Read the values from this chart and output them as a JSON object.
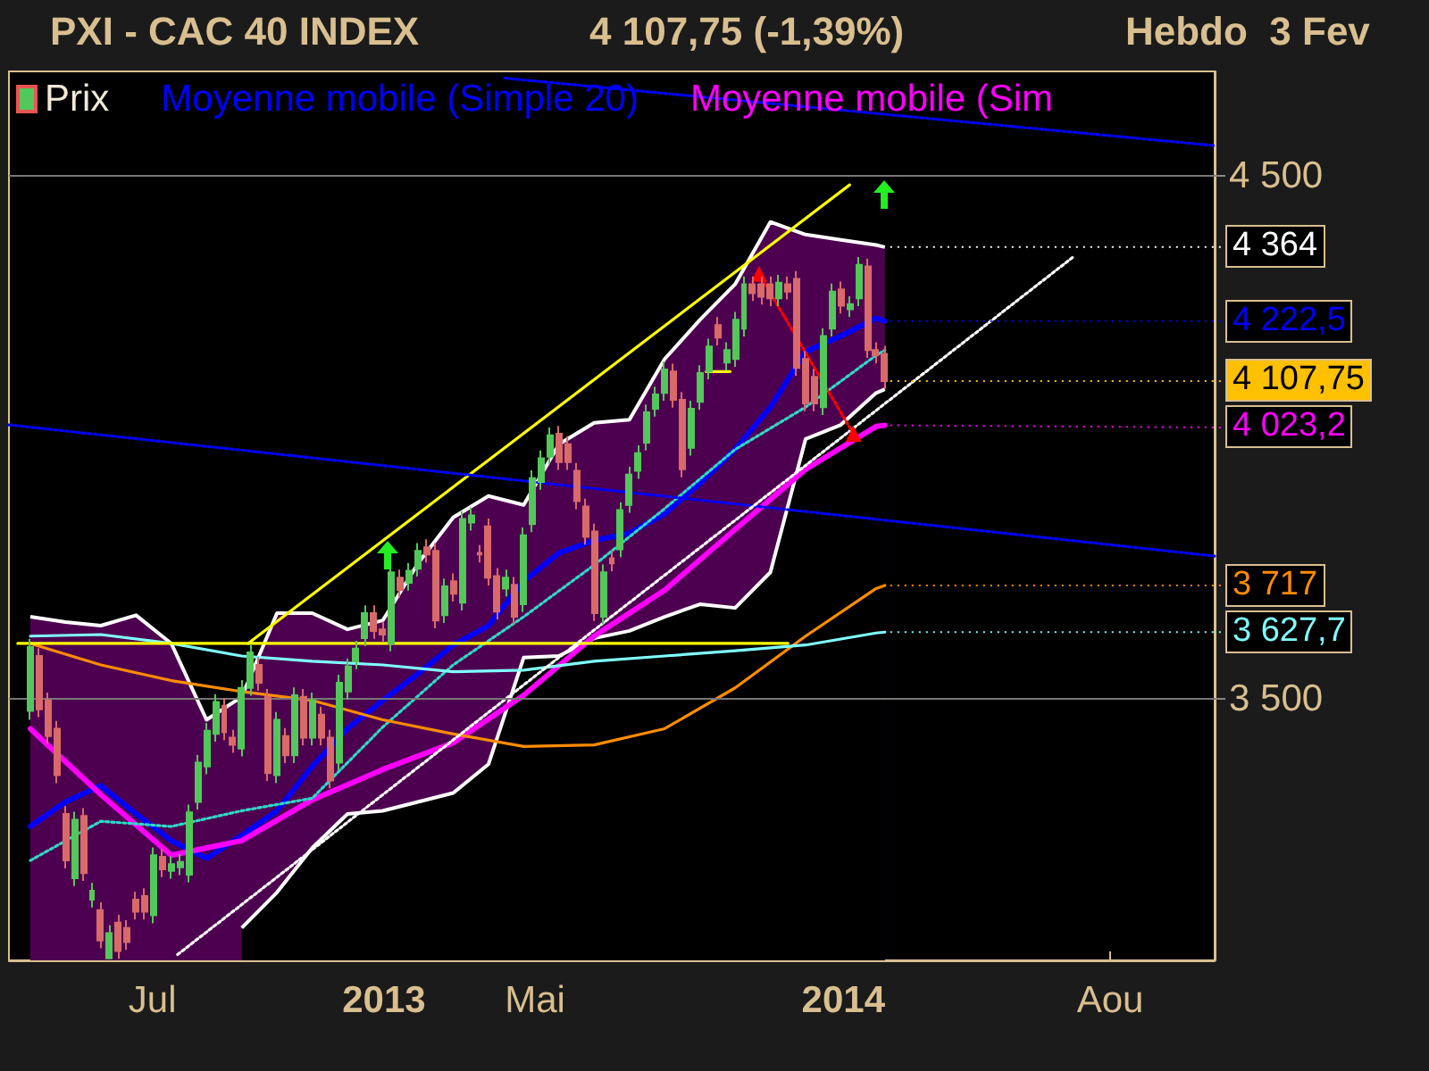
{
  "chart_data": {
    "type": "candlestick",
    "title": "PXI - CAC 40 INDEX",
    "subtitle": "4 107,75 (-1,39%)",
    "annotations": [
      "Hebdo  3 Fev"
    ],
    "xlim": [
      "2012-03-09",
      "2014-10-23"
    ],
    "xticks": [
      {
        "value": "2012-07-01",
        "label": "Jul"
      },
      {
        "value": "2013-01-01",
        "label": "2013"
      },
      {
        "value": "2013-05-01",
        "label": "Mai"
      },
      {
        "value": "2014-01-01",
        "label": "2014"
      },
      {
        "value": "2014-08-01",
        "label": "Aou"
      }
    ],
    "ylim": [
      3000,
      4700
    ],
    "yticks": [
      {
        "value": 4500,
        "label": "4 500"
      },
      {
        "value": 3500,
        "label": "3 500"
      }
    ],
    "grid": "y",
    "legend": "top left",
    "series": [
      {
        "name": "Prix",
        "value_labels": [
          null,
          null,
          null,
          null,
          null,
          null,
          null,
          null,
          null,
          null,
          null,
          null,
          null,
          null,
          null,
          null,
          null,
          null,
          null,
          null,
          null,
          null,
          null,
          null,
          null,
          null,
          null,
          null,
          null,
          null,
          null,
          null,
          null,
          null,
          null,
          null,
          null,
          null,
          null,
          null,
          null,
          null,
          null,
          null,
          null,
          null,
          null,
          null,
          null,
          null,
          null,
          null,
          null,
          null,
          null,
          null,
          null,
          null,
          null,
          null,
          null,
          null,
          null,
          null,
          null,
          null,
          null,
          null,
          null,
          null,
          null,
          null,
          null,
          null,
          null,
          null,
          null,
          null,
          null,
          null,
          null,
          null,
          null,
          null,
          null,
          null,
          null,
          null,
          null,
          null,
          null,
          null,
          null,
          null,
          null,
          null,
          null,
          "4 107,75"
        ],
        "color": "#f0e8d8",
        "x": [
          "2012-03-26",
          "2012-04-02",
          "2012-04-09",
          "2012-04-16",
          "2012-04-23",
          "2012-04-30",
          "2012-05-07",
          "2012-05-14",
          "2012-05-21",
          "2012-05-28",
          "2012-06-04",
          "2012-06-11",
          "2012-06-18",
          "2012-06-25",
          "2012-07-02",
          "2012-07-09",
          "2012-07-16",
          "2012-07-23",
          "2012-07-30",
          "2012-08-06",
          "2012-08-13",
          "2012-08-20",
          "2012-08-27",
          "2012-09-03",
          "2012-09-10",
          "2012-09-17",
          "2012-09-24",
          "2012-10-01",
          "2012-10-08",
          "2012-10-15",
          "2012-10-22",
          "2012-10-29",
          "2012-11-05",
          "2012-11-12",
          "2012-11-19",
          "2012-11-26",
          "2012-12-03",
          "2012-12-10",
          "2012-12-17",
          "2012-12-24",
          "2012-12-31",
          "2013-01-07",
          "2013-01-14",
          "2013-01-21",
          "2013-01-28",
          "2013-02-04",
          "2013-02-11",
          "2013-02-18",
          "2013-02-25",
          "2013-03-04",
          "2013-03-11",
          "2013-03-18",
          "2013-03-25",
          "2013-04-01",
          "2013-04-08",
          "2013-04-15",
          "2013-04-22",
          "2013-04-29",
          "2013-05-06",
          "2013-05-13",
          "2013-05-20",
          "2013-05-27",
          "2013-06-03",
          "2013-06-10",
          "2013-06-17",
          "2013-06-24",
          "2013-07-01",
          "2013-07-08",
          "2013-07-15",
          "2013-07-22",
          "2013-07-29",
          "2013-08-05",
          "2013-08-12",
          "2013-08-19",
          "2013-08-26",
          "2013-09-02",
          "2013-09-09",
          "2013-09-16",
          "2013-09-23",
          "2013-09-30",
          "2013-10-07",
          "2013-10-14",
          "2013-10-21",
          "2013-10-28",
          "2013-11-04",
          "2013-11-11",
          "2013-11-18",
          "2013-11-25",
          "2013-12-02",
          "2013-12-09",
          "2013-12-16",
          "2013-12-23",
          "2013-12-30",
          "2014-01-06",
          "2014-01-13",
          "2014-01-20",
          "2014-01-27",
          "2014-02-03"
        ],
        "ohlc": [
          [
            3477,
            3615,
            3460,
            3599
          ],
          [
            3582,
            3597,
            3465,
            3480
          ],
          [
            3497,
            3512,
            3414,
            3429
          ],
          [
            3443,
            3458,
            3339,
            3354
          ],
          [
            3280,
            3295,
            3176,
            3191
          ],
          [
            3157,
            3284,
            3142,
            3269
          ],
          [
            3276,
            3291,
            3152,
            3167
          ],
          [
            3116,
            3148,
            3101,
            3133
          ],
          [
            3096,
            3111,
            3023,
            3038
          ],
          [
            3004,
            3067,
            3002,
            3052
          ],
          [
            3072,
            3087,
            3003,
            3018
          ],
          [
            3062,
            3077,
            3020,
            3035
          ],
          [
            3116,
            3131,
            3078,
            3093
          ],
          [
            3123,
            3138,
            3078,
            3093
          ],
          [
            3086,
            3216,
            3071,
            3201
          ],
          [
            3198,
            3213,
            3159,
            3174
          ],
          [
            3171,
            3199,
            3156,
            3184
          ],
          [
            3178,
            3203,
            3163,
            3188
          ],
          [
            3164,
            3298,
            3149,
            3283
          ],
          [
            3303,
            3393,
            3288,
            3378
          ],
          [
            3371,
            3454,
            3356,
            3439
          ],
          [
            3433,
            3509,
            3418,
            3494
          ],
          [
            3487,
            3502,
            3421,
            3436
          ],
          [
            3426,
            3441,
            3397,
            3412
          ],
          [
            3405,
            3536,
            3390,
            3521
          ],
          [
            3521,
            3604,
            3506,
            3589
          ],
          [
            3565,
            3580,
            3516,
            3531
          ],
          [
            3504,
            3519,
            3343,
            3358
          ],
          [
            3354,
            3475,
            3339,
            3460
          ],
          [
            3429,
            3444,
            3377,
            3392
          ],
          [
            3392,
            3522,
            3377,
            3507
          ],
          [
            3504,
            3519,
            3411,
            3426
          ],
          [
            3426,
            3512,
            3411,
            3497
          ],
          [
            3470,
            3485,
            3411,
            3426
          ],
          [
            3426,
            3441,
            3329,
            3344
          ],
          [
            3378,
            3546,
            3363,
            3531
          ],
          [
            3514,
            3577,
            3499,
            3562
          ],
          [
            3572,
            3611,
            3557,
            3596
          ],
          [
            3616,
            3679,
            3601,
            3664
          ],
          [
            3664,
            3679,
            3615,
            3630
          ],
          [
            3633,
            3648,
            3608,
            3623
          ],
          [
            3606,
            3757,
            3591,
            3742
          ],
          [
            3732,
            3747,
            3693,
            3708
          ],
          [
            3722,
            3760,
            3707,
            3745
          ],
          [
            3749,
            3798,
            3734,
            3783
          ],
          [
            3790,
            3805,
            3761,
            3776
          ],
          [
            3783,
            3798,
            3635,
            3650
          ],
          [
            3660,
            3730,
            3645,
            3715
          ],
          [
            3725,
            3740,
            3686,
            3701
          ],
          [
            3684,
            3859,
            3669,
            3844
          ],
          [
            3837,
            3866,
            3822,
            3851
          ],
          [
            3779,
            3794,
            3761,
            3776
          ],
          [
            3830,
            3845,
            3717,
            3732
          ],
          [
            3735,
            3750,
            3652,
            3667
          ],
          [
            3711,
            3747,
            3696,
            3732
          ],
          [
            3718,
            3733,
            3642,
            3657
          ],
          [
            3681,
            3828,
            3666,
            3813
          ],
          [
            3834,
            3937,
            3819,
            3922
          ],
          [
            3915,
            3975,
            3900,
            3960
          ],
          [
            3963,
            4019,
            3948,
            4004
          ],
          [
            4007,
            4022,
            3938,
            3953
          ],
          [
            3987,
            4002,
            3938,
            3953
          ],
          [
            3936,
            3951,
            3863,
            3878
          ],
          [
            3868,
            3883,
            3795,
            3810
          ],
          [
            3820,
            3835,
            3649,
            3664
          ],
          [
            3657,
            3757,
            3642,
            3742
          ],
          [
            3769,
            3784,
            3744,
            3759
          ],
          [
            3786,
            3876,
            3771,
            3861
          ],
          [
            3871,
            3944,
            3856,
            3929
          ],
          [
            3936,
            3985,
            3921,
            3970
          ],
          [
            3990,
            4063,
            3975,
            4048
          ],
          [
            4055,
            4097,
            4040,
            4082
          ],
          [
            4085,
            4145,
            4070,
            4130
          ],
          [
            4126,
            4141,
            4057,
            4072
          ],
          [
            4072,
            4087,
            3924,
            3939
          ],
          [
            3980,
            4070,
            3965,
            4055
          ],
          [
            4068,
            4138,
            4053,
            4123
          ],
          [
            4126,
            4189,
            4111,
            4174
          ],
          [
            4215,
            4230,
            4176,
            4191
          ],
          [
            4143,
            4182,
            4128,
            4167
          ],
          [
            4150,
            4240,
            4135,
            4225
          ],
          [
            4208,
            4308,
            4193,
            4293
          ],
          [
            4293,
            4308,
            4261,
            4276
          ],
          [
            4293,
            4308,
            4254,
            4269
          ],
          [
            4293,
            4308,
            4251,
            4266
          ],
          [
            4266,
            4311,
            4251,
            4296
          ],
          [
            4293,
            4308,
            4264,
            4279
          ],
          [
            4303,
            4318,
            4118,
            4133
          ],
          [
            4150,
            4165,
            4050,
            4065
          ],
          [
            4116,
            4131,
            4050,
            4065
          ],
          [
            4058,
            4209,
            4043,
            4194
          ],
          [
            4208,
            4294,
            4193,
            4279
          ],
          [
            4283,
            4298,
            4237,
            4252
          ],
          [
            4245,
            4270,
            4230,
            4255
          ],
          [
            4266,
            4345,
            4251,
            4330
          ],
          [
            4327,
            4342,
            4152,
            4167
          ],
          [
            4167,
            4182,
            4142,
            4157
          ],
          [
            4160,
            4175,
            4093,
            4107.75
          ]
        ],
        "colors": [
          "#52c85a",
          "#d86a6a",
          "#d86a6a",
          "#d86a6a",
          "#d86a6a",
          "#52c85a",
          "#d86a6a",
          "#52c85a",
          "#d86a6a",
          "#52c85a",
          "#d86a6a",
          "#d86a6a",
          "#d86a6a",
          "#d86a6a",
          "#52c85a",
          "#d86a6a",
          "#52c85a",
          "#52c85a",
          "#52c85a",
          "#52c85a",
          "#52c85a",
          "#52c85a",
          "#d86a6a",
          "#d86a6a",
          "#52c85a",
          "#52c85a",
          "#d86a6a",
          "#d86a6a",
          "#52c85a",
          "#d86a6a",
          "#52c85a",
          "#d86a6a",
          "#52c85a",
          "#d86a6a",
          "#d86a6a",
          "#52c85a",
          "#52c85a",
          "#52c85a",
          "#52c85a",
          "#d86a6a",
          "#d86a6a",
          "#52c85a",
          "#d86a6a",
          "#52c85a",
          "#52c85a",
          "#d86a6a",
          "#d86a6a",
          "#52c85a",
          "#d86a6a",
          "#52c85a",
          "#52c85a",
          "#d86a6a",
          "#d86a6a",
          "#d86a6a",
          "#52c85a",
          "#d86a6a",
          "#52c85a",
          "#52c85a",
          "#52c85a",
          "#52c85a",
          "#d86a6a",
          "#d86a6a",
          "#d86a6a",
          "#d86a6a",
          "#d86a6a",
          "#52c85a",
          "#d86a6a",
          "#52c85a",
          "#52c85a",
          "#52c85a",
          "#52c85a",
          "#52c85a",
          "#52c85a",
          "#d86a6a",
          "#d86a6a",
          "#52c85a",
          "#52c85a",
          "#52c85a",
          "#d86a6a",
          "#52c85a",
          "#52c85a",
          "#52c85a",
          "#d86a6a",
          "#d86a6a",
          "#d86a6a",
          "#52c85a",
          "#d86a6a",
          "#d86a6a",
          "#d86a6a",
          "#d86a6a",
          "#52c85a",
          "#52c85a",
          "#d86a6a",
          "#52c85a",
          "#52c85a",
          "#d86a6a",
          "#d86a6a",
          "#d86a6a"
        ]
      },
      {
        "type": "line",
        "name": "Moyenne mobile (Simple 20)",
        "color": "#0000ff",
        "x": [
          "2012-03-26",
          "2012-04-23",
          "2012-05-21",
          "2012-06-18",
          "2012-07-16",
          "2012-08-13",
          "2012-09-10",
          "2012-10-08",
          "2012-11-05",
          "2012-12-03",
          "2012-12-31",
          "2013-01-28",
          "2013-02-25",
          "2013-03-25",
          "2013-04-22",
          "2013-05-20",
          "2013-06-17",
          "2013-07-15",
          "2013-08-12",
          "2013-09-09",
          "2013-10-07",
          "2013-11-04",
          "2013-12-02",
          "2013-12-30",
          "2014-01-27",
          "2014-02-03"
        ],
        "values": [
          3256,
          3303,
          3334,
          3280,
          3229,
          3195,
          3239,
          3286,
          3371,
          3443,
          3497,
          3548,
          3603,
          3640,
          3725,
          3779,
          3803,
          3817,
          3854,
          3912,
          3977,
          4058,
          4164,
          4194,
          4228,
          4222.5
        ],
        "value_labels": [
          null,
          null,
          null,
          null,
          null,
          null,
          null,
          null,
          null,
          null,
          null,
          null,
          null,
          null,
          null,
          null,
          null,
          null,
          null,
          null,
          null,
          null,
          null,
          null,
          null,
          "4 222,5"
        ]
      },
      {
        "type": "area",
        "color": "#4e0050",
        "x": [
          "2012-03-26",
          "2012-04-23",
          "2012-05-21",
          "2012-06-18",
          "2012-07-16",
          "2012-08-13",
          "2012-09-10",
          "2012-10-08",
          "2012-11-05",
          "2012-12-03",
          "2012-12-31",
          "2013-01-28",
          "2013-02-25",
          "2013-03-25",
          "2013-04-22",
          "2013-05-20",
          "2013-06-17",
          "2013-07-15",
          "2013-08-12",
          "2013-09-09",
          "2013-10-07",
          "2013-11-04",
          "2013-12-02",
          "2013-12-30",
          "2014-01-27",
          "2014-02-03"
        ],
        "values": [
          3657,
          3647,
          3640,
          3660,
          3606,
          3460,
          3504,
          3664,
          3664,
          3633,
          3650,
          3759,
          3847,
          3888,
          3871,
          3987,
          4028,
          4034,
          4150,
          4225,
          4293,
          4412,
          4388,
          4378,
          4368,
          4364
        ],
        "value_labels": [
          null,
          null,
          null,
          null,
          null,
          null,
          null,
          null,
          null,
          null,
          null,
          null,
          null,
          null,
          null,
          null,
          null,
          null,
          null,
          null,
          null,
          null,
          null,
          null,
          null,
          "4 364"
        ]
      },
      {
        "type": "area",
        "color": "#000000",
        "x": [
          "2012-09-10",
          "2012-10-08",
          "2012-11-05",
          "2012-12-03",
          "2012-12-31",
          "2013-01-28",
          "2013-02-25",
          "2013-03-25",
          "2013-04-22",
          "2013-05-20",
          "2013-06-17",
          "2013-07-15",
          "2013-08-12",
          "2013-09-09",
          "2013-10-07",
          "2013-11-04",
          "2013-12-02",
          "2013-12-30",
          "2014-01-27",
          "2014-02-03"
        ],
        "values": [
          3062,
          3130,
          3215,
          3280,
          3286,
          3303,
          3320,
          3375,
          3579,
          3582,
          3616,
          3630,
          3657,
          3681,
          3674,
          3742,
          3997,
          4024,
          4085,
          4092
        ]
      },
      {
        "type": "line",
        "name": "Moyenne mobile (Sim",
        "color": "#ff00ff",
        "x": [
          "2012-03-26",
          "2012-05-21",
          "2012-07-16",
          "2012-09-10",
          "2012-11-05",
          "2012-12-31",
          "2013-02-25",
          "2013-04-22",
          "2013-06-17",
          "2013-08-12",
          "2013-10-07",
          "2013-12-02",
          "2014-01-27",
          "2014-02-03"
        ],
        "values": [
          3443,
          3317,
          3201,
          3229,
          3307,
          3365,
          3416,
          3507,
          3620,
          3708,
          3824,
          3939,
          4021,
          4023.2
        ],
        "value_labels": [
          null,
          null,
          null,
          null,
          null,
          null,
          null,
          null,
          null,
          null,
          null,
          null,
          null,
          "4 023,2"
        ]
      },
      {
        "type": "line",
        "color": "#30d8c8",
        "line_style": "dotted",
        "x": [
          "2012-03-26",
          "2012-05-21",
          "2012-07-16",
          "2012-09-10",
          "2012-11-05",
          "2012-12-31",
          "2013-02-25",
          "2013-04-22",
          "2013-06-17",
          "2013-08-12",
          "2013-10-07",
          "2013-12-02",
          "2014-01-27",
          "2014-02-03"
        ],
        "values": [
          3191,
          3266,
          3256,
          3286,
          3310,
          3446,
          3565,
          3657,
          3756,
          3864,
          3977,
          4058,
          4157,
          4167
        ]
      },
      {
        "type": "line",
        "color": "#ff8c00",
        "x": [
          "2012-03-26",
          "2012-05-21",
          "2012-07-16",
          "2012-09-10",
          "2012-11-05",
          "2012-12-31",
          "2013-02-25",
          "2013-04-22",
          "2013-06-17",
          "2013-08-12",
          "2013-10-07",
          "2013-12-02",
          "2014-01-27",
          "2014-02-03"
        ],
        "values": [
          3606,
          3565,
          3535,
          3514,
          3497,
          3460,
          3433,
          3409,
          3412,
          3443,
          3521,
          3620,
          3711,
          3717
        ],
        "value_labels": [
          null,
          null,
          null,
          null,
          null,
          null,
          null,
          null,
          null,
          null,
          null,
          null,
          null,
          "3 717"
        ]
      },
      {
        "type": "line",
        "color": "#80ffff",
        "x": [
          "2012-03-26",
          "2012-05-21",
          "2012-07-16",
          "2012-09-10",
          "2012-11-05",
          "2012-12-31",
          "2013-02-25",
          "2013-04-22",
          "2013-06-17",
          "2013-08-12",
          "2013-10-07",
          "2013-12-02",
          "2014-01-27",
          "2014-02-03"
        ],
        "values": [
          3620,
          3623,
          3606,
          3582,
          3572,
          3565,
          3552,
          3555,
          3572,
          3582,
          3592,
          3603,
          3626,
          3627.7
        ],
        "value_labels": [
          null,
          null,
          null,
          null,
          null,
          null,
          null,
          null,
          null,
          null,
          null,
          null,
          null,
          "3 627,7"
        ]
      },
      {
        "type": "line",
        "color": "#ffff00",
        "x": [
          "2012-09-15",
          "2014-01-06"
        ],
        "values": [
          3606,
          4483
        ]
      },
      {
        "type": "line",
        "color": "#ffff00",
        "x": [
          "2012-03-16",
          "2013-11-18"
        ],
        "values": [
          3606,
          3606
        ]
      },
      {
        "type": "line",
        "color": "#ffff00",
        "x": [
          "2013-09-14",
          "2013-10-03"
        ],
        "values": [
          4126,
          4126
        ]
      },
      {
        "type": "line",
        "color": "#0000ff",
        "line_style": "dotted",
        "x": [
          "2012-03-09",
          "2014-10-23"
        ],
        "values": [
          4024,
          3773
        ]
      },
      {
        "type": "line",
        "color": "#0000ff",
        "line_style": "dotted",
        "x": [
          "2013-04-07",
          "2014-10-23"
        ],
        "values": [
          4687,
          4558
        ]
      },
      {
        "type": "line",
        "color": "#ffffff",
        "line_style": "dotted",
        "x": [
          "2012-07-21",
          "2014-07-02"
        ],
        "values": [
          3011,
          4344
        ]
      },
      {
        "type": "line",
        "color": "#ff0000",
        "line_style": "dotted",
        "marker": "triangle",
        "x": [
          "2013-10-26",
          "2014-01-09"
        ],
        "values": [
          4313,
          4007
        ]
      }
    ]
  }
}
